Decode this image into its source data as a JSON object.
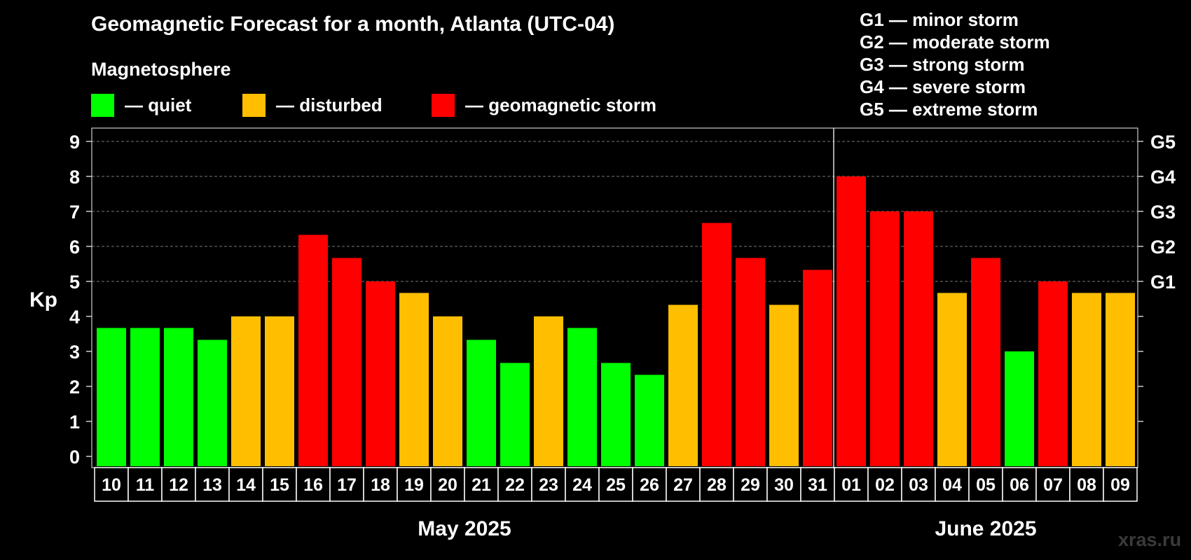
{
  "title": "Geomagnetic Forecast for a month, Atlanta (UTC-04)",
  "magnetosphere_label": "Magnetosphere",
  "legend": [
    {
      "key": "quiet",
      "label": "— quiet",
      "color": "#00ff00"
    },
    {
      "key": "disturbed",
      "label": "— disturbed",
      "color": "#ffbf00"
    },
    {
      "key": "storm",
      "label": "— geomagnetic storm",
      "color": "#ff0000"
    }
  ],
  "storm_scale": [
    "G1 — minor storm",
    "G2 — moderate storm",
    "G3 — strong storm",
    "G4 — severe storm",
    "G5 — extreme storm"
  ],
  "watermark": "xras.ru",
  "chart_data": {
    "type": "bar",
    "title": "Geomagnetic Forecast for a month, Atlanta (UTC-04)",
    "ylabel": "Kp",
    "ylim": [
      0,
      9
    ],
    "yticks": [
      "0",
      "1",
      "2",
      "3",
      "4",
      "5",
      "6",
      "7",
      "8",
      "9"
    ],
    "right_axis_labels": [
      {
        "value": 5,
        "label": "G1"
      },
      {
        "value": 6,
        "label": "G2"
      },
      {
        "value": 7,
        "label": "G3"
      },
      {
        "value": 8,
        "label": "G4"
      },
      {
        "value": 9,
        "label": "G5"
      }
    ],
    "grid": "dashed horizontal at 5-9",
    "categories": [
      "10",
      "11",
      "12",
      "13",
      "14",
      "15",
      "16",
      "17",
      "18",
      "19",
      "20",
      "21",
      "22",
      "23",
      "24",
      "25",
      "26",
      "27",
      "28",
      "29",
      "30",
      "31",
      "01",
      "02",
      "03",
      "04",
      "05",
      "06",
      "07",
      "08",
      "09"
    ],
    "values": [
      3.67,
      3.67,
      3.67,
      3.33,
      4.0,
      4.0,
      6.33,
      5.67,
      5.0,
      4.67,
      4.0,
      3.33,
      2.67,
      4.0,
      3.67,
      2.67,
      2.33,
      4.33,
      6.67,
      5.67,
      4.33,
      5.33,
      8.0,
      7.0,
      7.0,
      4.67,
      5.67,
      3.0,
      5.0,
      4.67,
      4.67
    ],
    "levels": [
      "quiet",
      "quiet",
      "quiet",
      "quiet",
      "disturbed",
      "disturbed",
      "storm",
      "storm",
      "storm",
      "disturbed",
      "disturbed",
      "quiet",
      "quiet",
      "disturbed",
      "quiet",
      "quiet",
      "quiet",
      "disturbed",
      "storm",
      "storm",
      "disturbed",
      "storm",
      "storm",
      "storm",
      "storm",
      "disturbed",
      "storm",
      "quiet",
      "storm",
      "disturbed",
      "disturbed"
    ],
    "months": [
      {
        "label": "May 2025",
        "start": 0,
        "end": 21
      },
      {
        "label": "June 2025",
        "start": 22,
        "end": 30
      }
    ]
  }
}
